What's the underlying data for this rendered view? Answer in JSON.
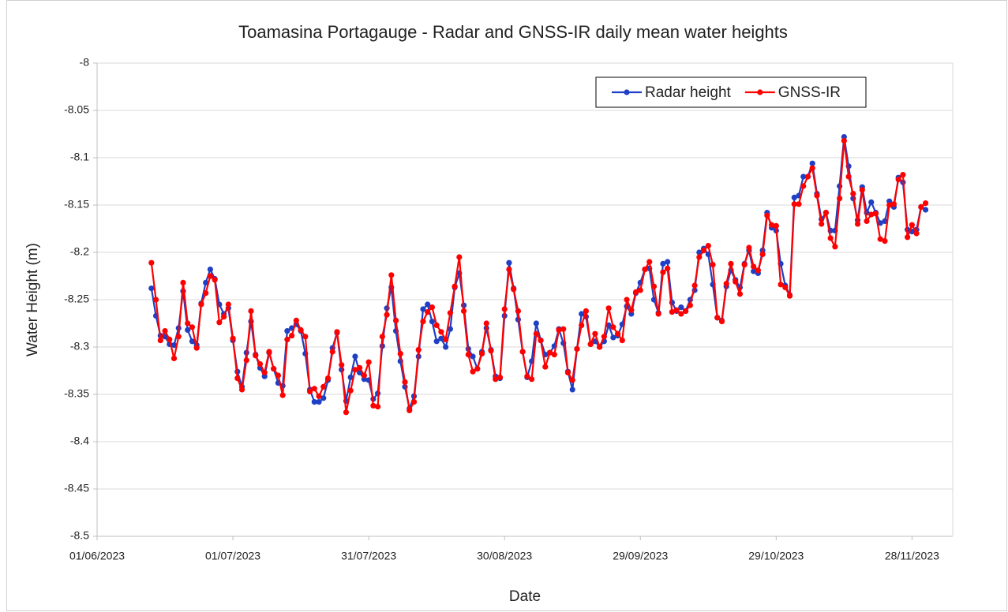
{
  "chart_data": {
    "type": "line",
    "title": "Toamasina Portagauge - Radar and GNSS-IR daily mean water heights",
    "x_label": "Date",
    "y_label": "Water Height (m)",
    "x": [
      "13/06/2023",
      "14/06/2023",
      "15/06/2023",
      "16/06/2023",
      "17/06/2023",
      "18/06/2023",
      "19/06/2023",
      "20/06/2023",
      "21/06/2023",
      "22/06/2023",
      "23/06/2023",
      "24/06/2023",
      "25/06/2023",
      "26/06/2023",
      "27/06/2023",
      "28/06/2023",
      "29/06/2023",
      "30/06/2023",
      "01/07/2023",
      "02/07/2023",
      "03/07/2023",
      "04/07/2023",
      "05/07/2023",
      "06/07/2023",
      "07/07/2023",
      "08/07/2023",
      "09/07/2023",
      "10/07/2023",
      "11/07/2023",
      "12/07/2023",
      "13/07/2023",
      "14/07/2023",
      "15/07/2023",
      "16/07/2023",
      "17/07/2023",
      "18/07/2023",
      "19/07/2023",
      "20/07/2023",
      "21/07/2023",
      "22/07/2023",
      "23/07/2023",
      "24/07/2023",
      "25/07/2023",
      "26/07/2023",
      "27/07/2023",
      "28/07/2023",
      "29/07/2023",
      "30/07/2023",
      "31/07/2023",
      "01/08/2023",
      "02/08/2023",
      "03/08/2023",
      "04/08/2023",
      "05/08/2023",
      "06/08/2023",
      "07/08/2023",
      "08/08/2023",
      "09/08/2023",
      "10/08/2023",
      "11/08/2023",
      "12/08/2023",
      "13/08/2023",
      "14/08/2023",
      "15/08/2023",
      "16/08/2023",
      "17/08/2023",
      "18/08/2023",
      "19/08/2023",
      "20/08/2023",
      "21/08/2023",
      "22/08/2023",
      "23/08/2023",
      "24/08/2023",
      "25/08/2023",
      "26/08/2023",
      "27/08/2023",
      "28/08/2023",
      "29/08/2023",
      "30/08/2023",
      "31/08/2023",
      "01/09/2023",
      "02/09/2023",
      "03/09/2023",
      "04/09/2023",
      "05/09/2023",
      "06/09/2023",
      "07/09/2023",
      "08/09/2023",
      "09/09/2023",
      "10/09/2023",
      "11/09/2023",
      "12/09/2023",
      "13/09/2023",
      "14/09/2023",
      "15/09/2023",
      "16/09/2023",
      "17/09/2023",
      "18/09/2023",
      "19/09/2023",
      "20/09/2023",
      "21/09/2023",
      "22/09/2023",
      "23/09/2023",
      "24/09/2023",
      "25/09/2023",
      "26/09/2023",
      "27/09/2023",
      "28/09/2023",
      "29/09/2023",
      "30/09/2023",
      "01/10/2023",
      "02/10/2023",
      "03/10/2023",
      "04/10/2023",
      "05/10/2023",
      "06/10/2023",
      "07/10/2023",
      "08/10/2023",
      "09/10/2023",
      "10/10/2023",
      "11/10/2023",
      "12/10/2023",
      "13/10/2023",
      "14/10/2023",
      "15/10/2023",
      "16/10/2023",
      "17/10/2023",
      "18/10/2023",
      "19/10/2023",
      "20/10/2023",
      "21/10/2023",
      "22/10/2023",
      "23/10/2023",
      "24/10/2023",
      "25/10/2023",
      "26/10/2023",
      "27/10/2023",
      "28/10/2023",
      "29/10/2023",
      "30/10/2023",
      "31/10/2023",
      "01/11/2023",
      "02/11/2023",
      "03/11/2023",
      "04/11/2023",
      "05/11/2023",
      "06/11/2023",
      "07/11/2023",
      "08/11/2023",
      "09/11/2023",
      "10/11/2023",
      "11/11/2023",
      "12/11/2023",
      "13/11/2023",
      "14/11/2023",
      "15/11/2023",
      "16/11/2023",
      "17/11/2023",
      "18/11/2023",
      "19/11/2023",
      "20/11/2023",
      "21/11/2023",
      "22/11/2023",
      "23/11/2023",
      "24/11/2023",
      "25/11/2023",
      "26/11/2023",
      "27/11/2023",
      "28/11/2023",
      "29/11/2023",
      "30/11/2023",
      "01/12/2023"
    ],
    "series": [
      {
        "name": "Radar height",
        "color": "#1f3fc4",
        "values": [
          -8.238,
          -8.267,
          -8.288,
          -8.289,
          -8.297,
          -8.298,
          -8.28,
          -8.241,
          -8.282,
          -8.294,
          -8.298,
          -8.254,
          -8.232,
          -8.218,
          -8.228,
          -8.255,
          -8.265,
          -8.259,
          -8.293,
          -8.326,
          -8.342,
          -8.306,
          -8.273,
          -8.308,
          -8.322,
          -8.331,
          -8.306,
          -8.323,
          -8.338,
          -8.341,
          -8.283,
          -8.28,
          -8.276,
          -8.283,
          -8.307,
          -8.345,
          -8.358,
          -8.358,
          -8.354,
          -8.335,
          -8.301,
          -8.285,
          -8.324,
          -8.357,
          -8.332,
          -8.31,
          -8.327,
          -8.334,
          -8.335,
          -8.355,
          -8.349,
          -8.299,
          -8.259,
          -8.237,
          -8.283,
          -8.315,
          -8.342,
          -8.365,
          -8.352,
          -8.31,
          -8.26,
          -8.255,
          -8.273,
          -8.294,
          -8.291,
          -8.3,
          -8.281,
          -8.237,
          -8.222,
          -8.256,
          -8.302,
          -8.31,
          -8.323,
          -8.305,
          -8.28,
          -8.303,
          -8.331,
          -8.333,
          -8.267,
          -8.211,
          -8.238,
          -8.271,
          -8.305,
          -8.332,
          -8.315,
          -8.275,
          -8.293,
          -8.308,
          -8.306,
          -8.299,
          -8.281,
          -8.296,
          -8.326,
          -8.345,
          -8.302,
          -8.265,
          -8.268,
          -8.297,
          -8.294,
          -8.3,
          -8.294,
          -8.277,
          -8.29,
          -8.288,
          -8.276,
          -8.257,
          -8.265,
          -8.243,
          -8.232,
          -8.218,
          -8.217,
          -8.25,
          -8.264,
          -8.212,
          -8.21,
          -8.253,
          -8.262,
          -8.258,
          -8.262,
          -8.25,
          -8.24,
          -8.2,
          -8.196,
          -8.202,
          -8.234,
          -8.269,
          -8.272,
          -8.236,
          -8.219,
          -8.229,
          -8.237,
          -8.212,
          -8.198,
          -8.22,
          -8.222,
          -8.198,
          -8.158,
          -8.174,
          -8.177,
          -8.212,
          -8.235,
          -8.245,
          -8.142,
          -8.14,
          -8.12,
          -8.12,
          -8.106,
          -8.138,
          -8.165,
          -8.158,
          -8.177,
          -8.177,
          -8.13,
          -8.078,
          -8.109,
          -8.143,
          -8.166,
          -8.131,
          -8.158,
          -8.147,
          -8.158,
          -8.169,
          -8.167,
          -8.146,
          -8.152,
          -8.121,
          -8.126,
          -8.176,
          -8.178,
          -8.176,
          -8.152,
          -8.155
        ]
      },
      {
        "name": "GNSS-IR",
        "color": "#ff0000",
        "values": [
          -8.211,
          -8.25,
          -8.293,
          -8.283,
          -8.292,
          -8.312,
          -8.289,
          -8.232,
          -8.275,
          -8.279,
          -8.301,
          -8.255,
          -8.243,
          -8.225,
          -8.229,
          -8.274,
          -8.268,
          -8.255,
          -8.291,
          -8.333,
          -8.345,
          -8.314,
          -8.262,
          -8.309,
          -8.318,
          -8.327,
          -8.305,
          -8.323,
          -8.33,
          -8.351,
          -8.292,
          -8.288,
          -8.272,
          -8.282,
          -8.289,
          -8.347,
          -8.344,
          -8.352,
          -8.342,
          -8.333,
          -8.305,
          -8.284,
          -8.319,
          -8.369,
          -8.346,
          -8.324,
          -8.322,
          -8.33,
          -8.316,
          -8.362,
          -8.363,
          -8.289,
          -8.266,
          -8.224,
          -8.272,
          -8.307,
          -8.337,
          -8.367,
          -8.358,
          -8.303,
          -8.273,
          -8.263,
          -8.258,
          -8.277,
          -8.284,
          -8.292,
          -8.264,
          -8.236,
          -8.205,
          -8.262,
          -8.308,
          -8.326,
          -8.323,
          -8.307,
          -8.275,
          -8.304,
          -8.334,
          -8.332,
          -8.26,
          -8.218,
          -8.239,
          -8.262,
          -8.305,
          -8.331,
          -8.334,
          -8.286,
          -8.293,
          -8.321,
          -8.306,
          -8.308,
          -8.282,
          -8.281,
          -8.327,
          -8.335,
          -8.302,
          -8.277,
          -8.262,
          -8.297,
          -8.286,
          -8.3,
          -8.289,
          -8.259,
          -8.279,
          -8.286,
          -8.293,
          -8.25,
          -8.261,
          -8.242,
          -8.24,
          -8.218,
          -8.21,
          -8.236,
          -8.265,
          -8.221,
          -8.217,
          -8.263,
          -8.261,
          -8.265,
          -8.262,
          -8.256,
          -8.235,
          -8.205,
          -8.198,
          -8.193,
          -8.213,
          -8.269,
          -8.273,
          -8.233,
          -8.212,
          -8.231,
          -8.244,
          -8.213,
          -8.195,
          -8.215,
          -8.219,
          -8.202,
          -8.161,
          -8.171,
          -8.172,
          -8.234,
          -8.237,
          -8.246,
          -8.149,
          -8.149,
          -8.13,
          -8.12,
          -8.111,
          -8.14,
          -8.17,
          -8.158,
          -8.185,
          -8.194,
          -8.143,
          -8.082,
          -8.12,
          -8.138,
          -8.17,
          -8.134,
          -8.167,
          -8.16,
          -8.159,
          -8.186,
          -8.188,
          -8.15,
          -8.149,
          -8.123,
          -8.118,
          -8.184,
          -8.171,
          -8.18,
          -8.152,
          -8.148
        ]
      }
    ],
    "xlim": [
      "01/06/2023",
      "07/12/2023"
    ],
    "xticks": [
      "01/06/2023",
      "01/07/2023",
      "31/07/2023",
      "30/08/2023",
      "29/09/2023",
      "29/10/2023",
      "28/11/2023"
    ],
    "ylim": [
      -8.5,
      -8
    ],
    "yticks": [
      -8,
      -8.05,
      -8.1,
      -8.15,
      -8.2,
      -8.25,
      -8.3,
      -8.35,
      -8.4,
      -8.45,
      -8.5
    ],
    "grid": true,
    "legend": "upper right"
  }
}
